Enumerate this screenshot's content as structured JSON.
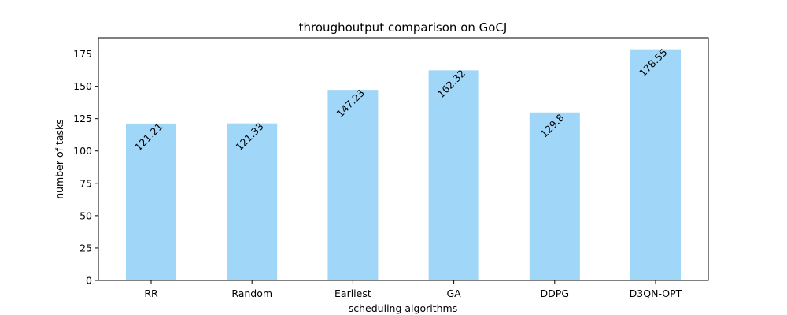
{
  "chart_data": {
    "type": "bar",
    "title": "throughoutput comparison on GoCJ",
    "xlabel": "scheduling algorithms",
    "ylabel": "number of tasks",
    "categories": [
      "RR",
      "Random",
      "Earliest",
      "GA",
      "DDPG",
      "D3QN-OPT"
    ],
    "values": [
      121.21,
      121.33,
      147.23,
      162.32,
      129.8,
      178.55
    ],
    "data_labels": [
      "121.21",
      "121.33",
      "147.23",
      "162.32",
      "129.8",
      "178.55"
    ],
    "ylim": [
      0,
      187.5
    ],
    "yticks": [
      0,
      25,
      50,
      75,
      100,
      125,
      150,
      175
    ],
    "grid": false,
    "legend": "none",
    "bar_color": "#a0d6f7"
  }
}
